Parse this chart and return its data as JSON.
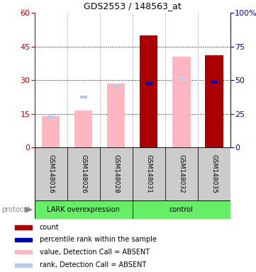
{
  "title": "GDS2553 / 148563_at",
  "samples": [
    "GSM148016",
    "GSM148026",
    "GSM148028",
    "GSM148031",
    "GSM148032",
    "GSM148035"
  ],
  "ylim_left": [
    0,
    60
  ],
  "ylim_right": [
    0,
    100
  ],
  "yticks_left": [
    0,
    15,
    30,
    45,
    60
  ],
  "yticks_right": [
    0,
    25,
    50,
    75,
    100
  ],
  "pink_bar_heights": [
    14.0,
    16.5,
    28.5,
    0.0,
    40.5,
    0.0
  ],
  "light_blue_heights": [
    13.5,
    22.5,
    27.5,
    0.0,
    30.5,
    0.0
  ],
  "dark_red_bar_heights": [
    0.0,
    0.0,
    0.0,
    50.0,
    0.0,
    41.0
  ],
  "blue_mark_heights": [
    0.0,
    0.0,
    0.0,
    28.5,
    0.0,
    29.0
  ],
  "pink_color": "#FFB6C1",
  "light_blue_color": "#B8C8E8",
  "dark_red_color": "#AA0000",
  "blue_color": "#0000BB",
  "bar_width": 0.55,
  "left_axis_color": "#CC0000",
  "right_axis_color": "#0000CC",
  "group_labels": [
    "LARK overexpression",
    "control"
  ],
  "group_color": "#66EE66",
  "legend_items": [
    {
      "label": "count",
      "color": "#AA0000"
    },
    {
      "label": "percentile rank within the sample",
      "color": "#0000BB"
    },
    {
      "label": "value, Detection Call = ABSENT",
      "color": "#FFB6C1"
    },
    {
      "label": "rank, Detection Call = ABSENT",
      "color": "#B8C8E8"
    }
  ]
}
